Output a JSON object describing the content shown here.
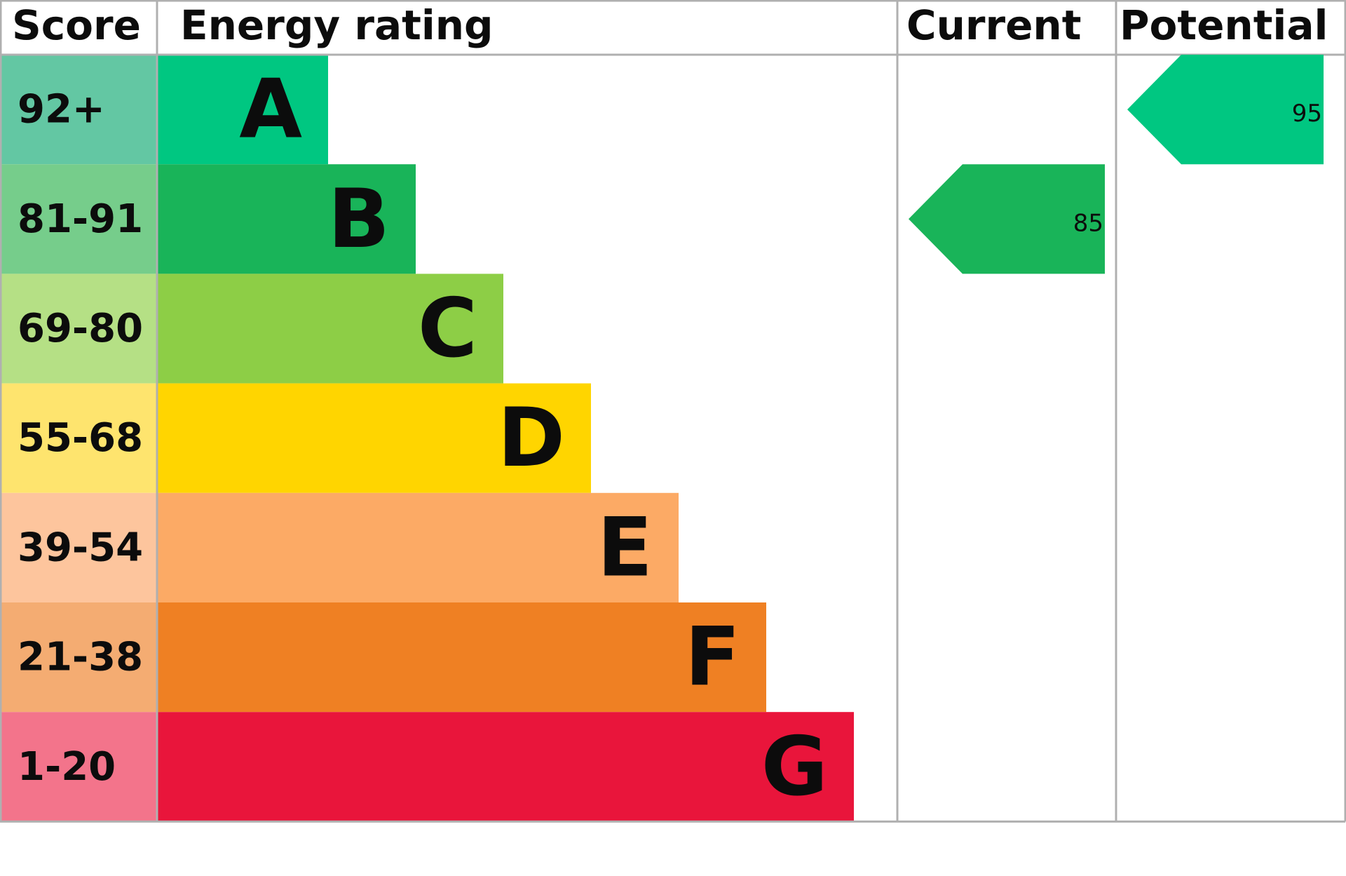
{
  "header": {
    "score": "Score",
    "energy_rating": "Energy rating",
    "current": "Current",
    "potential": "Potential"
  },
  "bands": [
    {
      "score": "92+",
      "letter": "A"
    },
    {
      "score": "81-91",
      "letter": "B"
    },
    {
      "score": "69-80",
      "letter": "C"
    },
    {
      "score": "55-68",
      "letter": "D"
    },
    {
      "score": "39-54",
      "letter": "E"
    },
    {
      "score": "21-38",
      "letter": "F"
    },
    {
      "score": "1-20",
      "letter": "G"
    }
  ],
  "current": {
    "value": "85"
  },
  "potential": {
    "value": "95"
  }
}
